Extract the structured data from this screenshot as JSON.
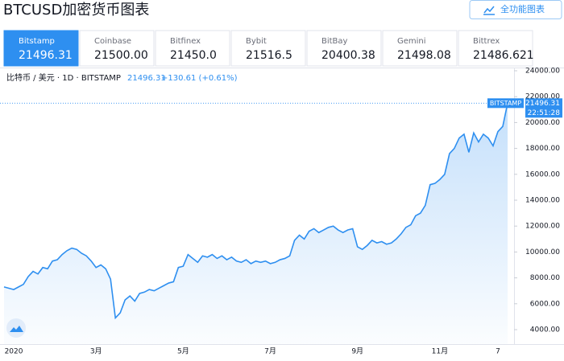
{
  "header": {
    "title": "BTCUSD加密货币图表",
    "button": "全功能图表"
  },
  "tabs": [
    {
      "name": "Bitstamp",
      "price": "21496.31"
    },
    {
      "name": "Coinbase",
      "price": "21500.00"
    },
    {
      "name": "Bitfinex",
      "price": "21450.0"
    },
    {
      "name": "Bybit",
      "price": "21516.5"
    },
    {
      "name": "BitBay",
      "price": "20400.38"
    },
    {
      "name": "Gemini",
      "price": "21498.08"
    },
    {
      "name": "Bittrex",
      "price": "21486.621"
    }
  ],
  "chart_data": {
    "type": "area",
    "symbol_label": "比特币 / 美元 · 1D · BITSTAMP",
    "change_label": "+130.61 (+0.61%)",
    "exchange_tag": "BITSTAMP",
    "time_label": "22:51:28",
    "categories": [
      null,
      null,
      "2020",
      null,
      null,
      null,
      null,
      null,
      null,
      null,
      null,
      null,
      null,
      null,
      null,
      null,
      null,
      null,
      null,
      "3月",
      null,
      null,
      null,
      null,
      null,
      null,
      null,
      null,
      null,
      null,
      null,
      null,
      null,
      null,
      null,
      null,
      null,
      "5月",
      null,
      null,
      null,
      null,
      null,
      null,
      null,
      null,
      null,
      null,
      null,
      null,
      null,
      null,
      null,
      null,
      null,
      "7月",
      null,
      null,
      null,
      null,
      null,
      null,
      null,
      null,
      null,
      null,
      null,
      null,
      null,
      null,
      null,
      null,
      null,
      "9月",
      null,
      null,
      null,
      null,
      null,
      null,
      null,
      null,
      null,
      null,
      null,
      null,
      null,
      null,
      null,
      null,
      "11月",
      null,
      null,
      null,
      null,
      null,
      null,
      null,
      null,
      null,
      null,
      null,
      "7",
      null,
      null
    ],
    "series": [
      {
        "name": "BTCUSD",
        "color": "#2e8ff0",
        "values": [
          7300,
          7200,
          7100,
          7300,
          7500,
          8100,
          8500,
          8300,
          8800,
          8700,
          9300,
          9400,
          9800,
          10100,
          10300,
          10200,
          9900,
          9700,
          9300,
          8800,
          9000,
          8700,
          7900,
          4900,
          5300,
          6300,
          6600,
          6200,
          6800,
          6900,
          7100,
          7000,
          7200,
          7400,
          7600,
          7700,
          8800,
          8900,
          9800,
          9500,
          9200,
          9700,
          9600,
          9800,
          9500,
          9700,
          9400,
          9600,
          9300,
          9200,
          9400,
          9100,
          9300,
          9200,
          9300,
          9100,
          9200,
          9400,
          9500,
          9700,
          10900,
          11300,
          11000,
          11600,
          11800,
          11500,
          11700,
          11900,
          12000,
          11700,
          11500,
          11700,
          11800,
          10400,
          10200,
          10500,
          10900,
          10700,
          10800,
          10600,
          10700,
          11000,
          11400,
          11900,
          12100,
          12800,
          13000,
          13600,
          15200,
          15300,
          15600,
          16000,
          17600,
          18000,
          18800,
          19100,
          17700,
          19200,
          18500,
          19100,
          18800,
          18200,
          19300,
          19700,
          21496.31
        ]
      }
    ],
    "ylim": [
      4000,
      24000
    ],
    "yticks": [
      {
        "value": 4000,
        "label": "4000.00"
      },
      {
        "value": 6000,
        "label": "6000.00"
      },
      {
        "value": 8000,
        "label": "8000.00"
      },
      {
        "value": 10000,
        "label": "10000.00"
      },
      {
        "value": 12000,
        "label": "12000.00"
      },
      {
        "value": 14000,
        "label": "14000.00"
      },
      {
        "value": 16000,
        "label": "16000.00"
      },
      {
        "value": 18000,
        "label": "18000.00"
      },
      {
        "value": 20000,
        "label": "20000.00"
      },
      {
        "value": 22000,
        "label": "22000.00"
      },
      {
        "value": 24000,
        "label": "24000.00"
      }
    ],
    "grid": false
  }
}
